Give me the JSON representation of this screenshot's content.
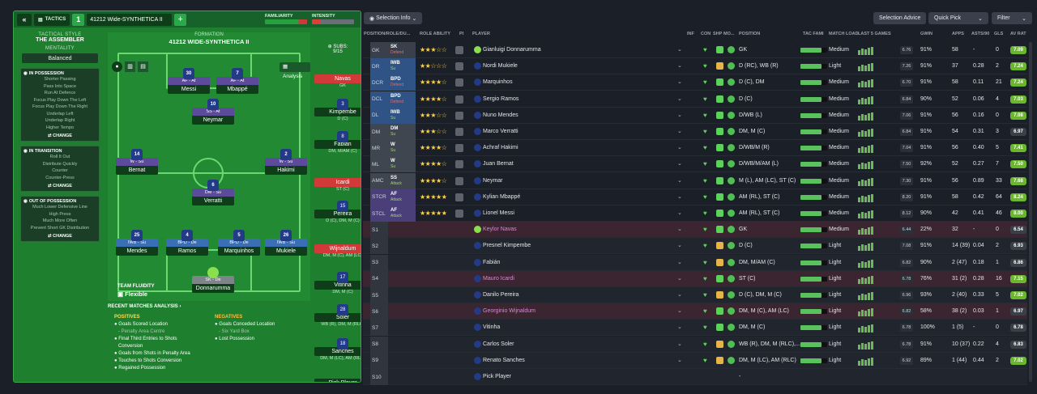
{
  "tactics": {
    "back": "«",
    "label": "TACTICS",
    "slot": "1",
    "name": "41212 Wide-SYNTHETICA II",
    "add": "+",
    "familiarity": "FAMILIARITY",
    "intensity": "INTENSITY"
  },
  "sidebar": {
    "style_label": "TACTICAL STYLE",
    "style_value": "THE ASSEMBLER",
    "mentality_label": "MENTALITY",
    "mentality_value": "Balanced",
    "in_possession": {
      "title": "IN POSSESSION",
      "items": [
        "Shorter Passing",
        "Pass Into Space",
        "Run At Defence",
        "Focus Play Down The Left",
        "Focus Play Down The Right",
        "Underlap Left",
        "Underlap Right",
        "Higher Tempo"
      ],
      "btn": "CHANGE"
    },
    "in_transition": {
      "title": "IN TRANSITION",
      "items": [
        "Roll It Out",
        "Distribute Quickly",
        "Counter",
        "Counter-Press"
      ],
      "btn": "CHANGE"
    },
    "out_possession": {
      "title": "OUT OF POSSESSION",
      "items": [
        "Much Lower Defensive Line",
        "High Press",
        "Much More Often",
        "Prevent Short GK Distribution"
      ],
      "btn": "CHANGE"
    }
  },
  "pitch": {
    "formation_label": "FORMATION",
    "formation": "41212 WIDE-SYNTHETICA II",
    "analysis": "Analysis",
    "fluidity_label": "TEAM FLUIDITY",
    "fluidity": "Flexible",
    "players": [
      {
        "n": "30",
        "role": "AF - At",
        "name": "Messi",
        "def": false
      },
      {
        "n": "7",
        "role": "AF - At",
        "name": "Mbappé",
        "def": false
      },
      {
        "n": "10",
        "role": "SS - At",
        "name": "Neymar",
        "def": false
      },
      {
        "n": "14",
        "role": "W - Su",
        "name": "Bernat",
        "def": false
      },
      {
        "n": "2",
        "role": "W - Su",
        "name": "Hakimi",
        "def": false
      },
      {
        "n": "6",
        "role": "DM - Su",
        "name": "Verratti",
        "def": false
      },
      {
        "n": "25",
        "role": "IWB - Su",
        "name": "Mendes",
        "def": true
      },
      {
        "n": "4",
        "role": "BPD - De",
        "name": "Ramos",
        "def": true
      },
      {
        "n": "5",
        "role": "BPD - De",
        "name": "Marquinhos",
        "def": true
      },
      {
        "n": "26",
        "role": "IWB - Su",
        "name": "Mukiele",
        "def": true
      },
      {
        "n": "",
        "role": "SK - De",
        "name": "Donnarumma",
        "def": false
      }
    ]
  },
  "subs": {
    "label": "SUBS:",
    "count": "9/15",
    "list": [
      {
        "n": "",
        "name": "Navas",
        "pos": "GK",
        "red": true
      },
      {
        "n": "3",
        "name": "Kimpembe",
        "pos": "D (C)",
        "red": false
      },
      {
        "n": "8",
        "name": "Fabián",
        "pos": "DM, M/AM (C)",
        "red": false
      },
      {
        "n": "",
        "name": "Icardi",
        "pos": "ST (C)",
        "red": true
      },
      {
        "n": "15",
        "name": "Pereira",
        "pos": "D (C), DM, M (C)",
        "red": false
      },
      {
        "n": "",
        "name": "Wijnaldum",
        "pos": "DM, M (C), AM (LC)",
        "red": true
      },
      {
        "n": "17",
        "name": "Vitinha",
        "pos": "DM, M (C)",
        "red": false
      },
      {
        "n": "28",
        "name": "Soler",
        "pos": "WB (R), DM, M (RLC)",
        "red": false
      },
      {
        "n": "18",
        "name": "Sanches",
        "pos": "DM, M (LC), AM (RLC)",
        "red": false
      },
      {
        "n": "",
        "name": "Pick Player",
        "pos": "",
        "red": false
      }
    ]
  },
  "analysis": {
    "title": "RECENT MATCHES ANALYSIS ›",
    "positives": "POSITIVES",
    "negatives": "NEGATIVES",
    "pos_items": [
      "Goals Scored Location",
      "- Penalty Area Centre",
      "Final Third Entries to Shots",
      "Conversion",
      "Goals from Shots in Penalty Area",
      "Touches to Shots Conversion",
      "Regained Possession"
    ],
    "neg_items": [
      "Goals Conceded Location",
      "- Six Yard Box",
      "Lost Possession"
    ]
  },
  "toolbar": {
    "selection_info": "Selection Info",
    "selection_advice": "Selection Advice",
    "quick_pick": "Quick Pick",
    "filter": "Filter"
  },
  "headers": {
    "pos": "POSITION/ROLE/DU...",
    "role_ability": "ROLE ABILITY",
    "pi": "PI",
    "player": "PLAYER",
    "inf": "INF",
    "con": "CON",
    "shp": "SHP",
    "mo": "MO...",
    "position": "POSITION",
    "tac": "TAC FAMI",
    "load": "MATCH LOAD",
    "last5": "LAST 5 GAMES",
    "gwin": "GWIN",
    "apps": "APPS",
    "asts": "ASTS/90",
    "gls": "GLS",
    "avrat": "AV RAT"
  },
  "rows": [
    {
      "pos": "GK",
      "role": "SK",
      "duty": "Defend",
      "stars": 3,
      "name": "Gianluigi Donnarumma",
      "position": "GK",
      "load": "Medium",
      "gwin_r": "6.76",
      "gwin": "91%",
      "apps": "58",
      "asts": "-",
      "gls": "0",
      "rat": "7.09"
    },
    {
      "pos": "DR",
      "role": "IWB",
      "duty": "Su",
      "stars": 2,
      "name": "Nordi Mukiele",
      "position": "D (RC), WB (R)",
      "load": "Light",
      "gwin_r": "7.26",
      "gwin": "91%",
      "apps": "37",
      "asts": "0.28",
      "gls": "2",
      "rat": "7.24"
    },
    {
      "pos": "DCR",
      "role": "BPD",
      "duty": "Defend",
      "stars": 3.5,
      "name": "Marquinhos",
      "position": "D (C), DM",
      "load": "Medium",
      "gwin_r": "6.70",
      "gwin": "91%",
      "apps": "58",
      "asts": "0.11",
      "gls": "21",
      "rat": "7.24"
    },
    {
      "pos": "DCL",
      "role": "BPD",
      "duty": "Defend",
      "stars": 3.5,
      "name": "Sergio Ramos",
      "position": "D (C)",
      "load": "Medium",
      "gwin_r": "6.84",
      "gwin": "90%",
      "apps": "52",
      "asts": "0.06",
      "gls": "4",
      "rat": "7.03"
    },
    {
      "pos": "DL",
      "role": "IWB",
      "duty": "Su",
      "stars": 2.5,
      "name": "Nuno Mendes",
      "position": "D/WB (L)",
      "load": "Medium",
      "gwin_r": "7.06",
      "gwin": "91%",
      "apps": "56",
      "asts": "0.16",
      "gls": "0",
      "rat": "7.08"
    },
    {
      "pos": "DM",
      "role": "DM",
      "duty": "Su",
      "stars": 3,
      "name": "Marco Verratti",
      "position": "DM, M (C)",
      "load": "Medium",
      "gwin_r": "6.84",
      "gwin": "91%",
      "apps": "54",
      "asts": "0.31",
      "gls": "3",
      "rat": "6.97"
    },
    {
      "pos": "MR",
      "role": "W",
      "duty": "Su",
      "stars": 4,
      "name": "Achraf Hakimi",
      "position": "D/WB/M (R)",
      "load": "Medium",
      "gwin_r": "7.04",
      "gwin": "91%",
      "apps": "56",
      "asts": "0.40",
      "gls": "5",
      "rat": "7.41"
    },
    {
      "pos": "ML",
      "role": "W",
      "duty": "Su",
      "stars": 3.5,
      "name": "Juan Bernat",
      "position": "D/WB/M/AM (L)",
      "load": "Medium",
      "gwin_r": "7.50",
      "gwin": "92%",
      "apps": "52",
      "asts": "0.27",
      "gls": "7",
      "rat": "7.50"
    },
    {
      "pos": "AMC",
      "role": "SS",
      "duty": "Attack",
      "stars": 4,
      "name": "Neymar",
      "position": "M (L), AM (LC), ST (C)",
      "load": "Medium",
      "gwin_r": "7.30",
      "gwin": "91%",
      "apps": "56",
      "asts": "0.89",
      "gls": "33",
      "rat": "7.68"
    },
    {
      "pos": "STCR",
      "role": "AF",
      "duty": "Attack",
      "stars": 5,
      "name": "Kylian Mbappé",
      "position": "AM (RL), ST (C)",
      "load": "Medium",
      "gwin_r": "8.20",
      "gwin": "91%",
      "apps": "58",
      "asts": "0.42",
      "gls": "64",
      "rat": "8.24"
    },
    {
      "pos": "STCL",
      "role": "AF",
      "duty": "Attack",
      "stars": 4.5,
      "name": "Lionel Messi",
      "position": "AM (RL), ST (C)",
      "load": "Medium",
      "gwin_r": "8.12",
      "gwin": "90%",
      "apps": "42",
      "asts": "0.41",
      "gls": "46",
      "rat": "8.00"
    },
    {
      "pos": "S1",
      "role": "",
      "duty": "",
      "stars": 0,
      "name": "Keylor Navas",
      "position": "GK",
      "load": "Medium",
      "gwin_r": "6.44",
      "gwin": "22%",
      "apps": "32",
      "asts": "-",
      "gls": "0",
      "rat": "6.54"
    },
    {
      "pos": "S2",
      "role": "",
      "duty": "",
      "stars": 0,
      "name": "Presnel Kimpembe",
      "position": "D (C)",
      "load": "Light",
      "gwin_r": "7.08",
      "gwin": "91%",
      "apps": "14 (39)",
      "asts": "0.04",
      "gls": "2",
      "rat": "6.93"
    },
    {
      "pos": "S3",
      "role": "",
      "duty": "",
      "stars": 0,
      "name": "Fabián",
      "position": "DM, M/AM (C)",
      "load": "Light",
      "gwin_r": "6.82",
      "gwin": "90%",
      "apps": "2 (47)",
      "asts": "0.18",
      "gls": "1",
      "rat": "6.86"
    },
    {
      "pos": "S4",
      "role": "",
      "duty": "",
      "stars": 0,
      "name": "Mauro Icardi",
      "position": "ST (C)",
      "load": "Light",
      "gwin_r": "6.78",
      "gwin": "76%",
      "apps": "31 (2)",
      "asts": "0.28",
      "gls": "16",
      "rat": "7.15"
    },
    {
      "pos": "S5",
      "role": "",
      "duty": "",
      "stars": 0,
      "name": "Danilo Pereira",
      "position": "D (C), DM, M (C)",
      "load": "Light",
      "gwin_r": "6.96",
      "gwin": "93%",
      "apps": "2 (40)",
      "asts": "0.33",
      "gls": "5",
      "rat": "7.02"
    },
    {
      "pos": "S6",
      "role": "",
      "duty": "",
      "stars": 0,
      "name": "Georginio Wijnaldum",
      "position": "DM, M (C), AM (LC)",
      "load": "Light",
      "gwin_r": "6.82",
      "gwin": "58%",
      "apps": "38 (2)",
      "asts": "0.03",
      "gls": "1",
      "rat": "6.97"
    },
    {
      "pos": "S7",
      "role": "",
      "duty": "",
      "stars": 0,
      "name": "Vitinha",
      "position": "DM, M (C)",
      "load": "Light",
      "gwin_r": "6.78",
      "gwin": "100%",
      "apps": "1 (5)",
      "asts": "-",
      "gls": "0",
      "rat": "6.78"
    },
    {
      "pos": "S8",
      "role": "",
      "duty": "",
      "stars": 0,
      "name": "Carlos Soler",
      "position": "WB (R), DM, M (RLC),...",
      "load": "Light",
      "gwin_r": "6.78",
      "gwin": "91%",
      "apps": "10 (37)",
      "asts": "0.22",
      "gls": "4",
      "rat": "6.83"
    },
    {
      "pos": "S9",
      "role": "",
      "duty": "",
      "stars": 0,
      "name": "Renato Sanches",
      "position": "DM, M (LC), AM (RLC)",
      "load": "Light",
      "gwin_r": "6.92",
      "gwin": "89%",
      "apps": "1 (44)",
      "asts": "0.44",
      "gls": "2",
      "rat": "7.02"
    },
    {
      "pos": "S10",
      "role": "",
      "duty": "",
      "stars": 0,
      "name": "Pick Player",
      "position": "-",
      "load": "",
      "gwin_r": "",
      "gwin": "",
      "apps": "",
      "asts": "",
      "gls": "",
      "rat": ""
    }
  ]
}
